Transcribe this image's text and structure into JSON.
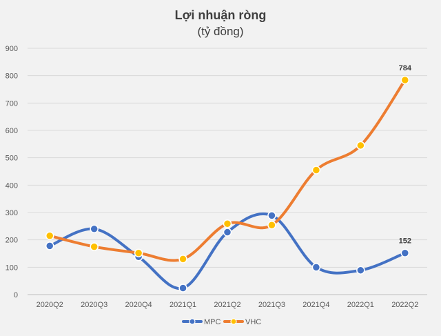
{
  "chart_data": {
    "type": "line",
    "title": "Lợi nhuận ròng",
    "subtitle": "(tỷ đồng)",
    "categories": [
      "2020Q2",
      "2020Q3",
      "2020Q4",
      "2021Q1",
      "2021Q2",
      "2021Q3",
      "2021Q4",
      "2022Q1",
      "2022Q2"
    ],
    "ylim": [
      0,
      900
    ],
    "yticks": [
      "0",
      "100",
      "200",
      "300",
      "400",
      "500",
      "600",
      "700",
      "800",
      "900"
    ],
    "grid": true,
    "legend_position": "bottom",
    "series": [
      {
        "name": "MPC",
        "color": "#4472c4",
        "marker_color": "#4472c4",
        "values": [
          178,
          240,
          138,
          24,
          228,
          289,
          100,
          89,
          152
        ]
      },
      {
        "name": "VHC",
        "color": "#ed7d31",
        "marker_color": "#ffc000",
        "values": [
          215,
          175,
          152,
          130,
          259,
          254,
          455,
          545,
          784
        ]
      }
    ],
    "data_labels": [
      {
        "series": "VHC",
        "category": "2022Q2",
        "text": "784"
      },
      {
        "series": "MPC",
        "category": "2022Q2",
        "text": "152"
      }
    ]
  }
}
